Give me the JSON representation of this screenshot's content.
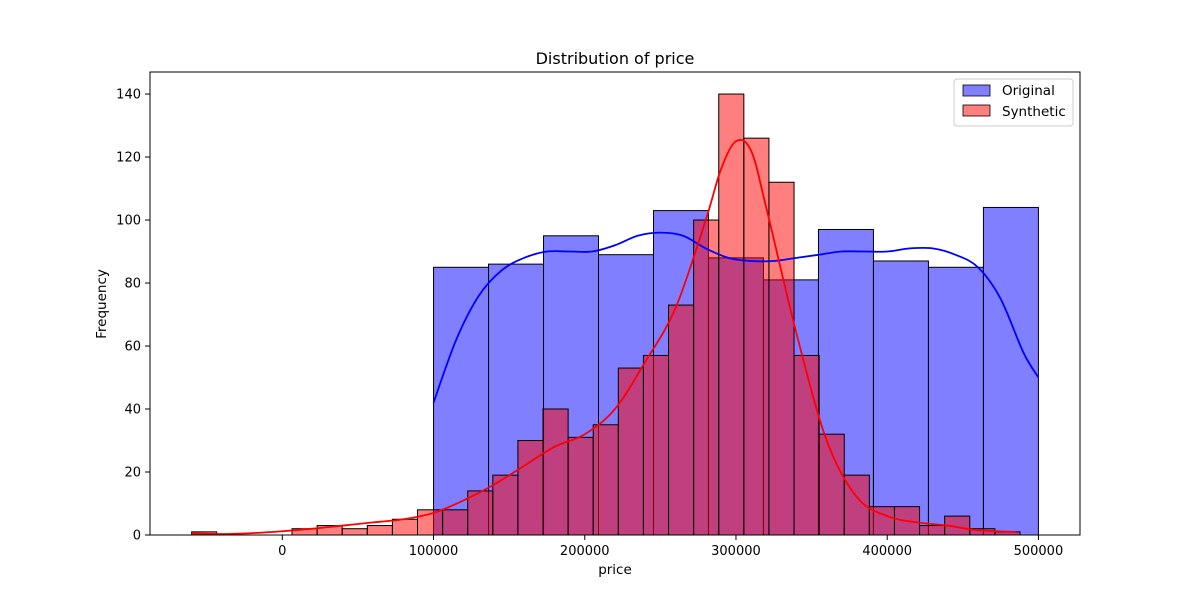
{
  "chart_data": {
    "type": "bar",
    "title": "Distribution of price",
    "xlabel": "price",
    "ylabel": "Frequency",
    "xlim": [
      -87500,
      527500
    ],
    "ylim": [
      0,
      147
    ],
    "x_ticks": [
      0,
      100000,
      200000,
      300000,
      400000,
      500000
    ],
    "y_ticks": [
      0,
      20,
      40,
      60,
      80,
      100,
      120,
      140
    ],
    "legend_placement": "top-right",
    "grid": false,
    "series": [
      {
        "name": "Original",
        "color": "#0000ff",
        "bin_edges": [
          100000,
          136364,
          172727,
          209091,
          245455,
          281818,
          318182,
          354545,
          390909,
          427273,
          463636,
          500000
        ],
        "counts": [
          85,
          86,
          95,
          89,
          103,
          88,
          81,
          97,
          87,
          85,
          104
        ],
        "kde_x": [
          100000,
          115000,
          130000,
          145000,
          160000,
          175000,
          190000,
          205000,
          220000,
          235000,
          250000,
          265000,
          280000,
          295000,
          310000,
          325000,
          340000,
          355000,
          370000,
          385000,
          400000,
          415000,
          430000,
          445000,
          460000,
          475000,
          490000,
          500000
        ],
        "kde_y": [
          42,
          62,
          76,
          84,
          88,
          90,
          90,
          90,
          92,
          95,
          96,
          95,
          91,
          88,
          87,
          87,
          88,
          89,
          90,
          90,
          90,
          91,
          91,
          89,
          85,
          75,
          58,
          50
        ]
      },
      {
        "name": "Synthetic",
        "color": "#ff0000",
        "bin_edges": [
          -60000,
          -43400,
          -26800,
          -10200,
          6400,
          23000,
          39600,
          56200,
          72800,
          89400,
          106000,
          122600,
          139200,
          155800,
          172400,
          189000,
          205600,
          222200,
          238800,
          255400,
          272000,
          288600,
          305200,
          321800,
          338400,
          355000,
          371600,
          388200,
          404800,
          421400,
          438000,
          454600,
          471200,
          487800
        ],
        "counts": [
          1,
          0,
          0,
          0,
          2,
          3,
          2,
          3,
          5,
          8,
          8,
          14,
          19,
          30,
          40,
          31,
          35,
          53,
          57,
          73,
          100,
          140,
          126,
          112,
          57,
          32,
          19,
          9,
          9,
          3,
          6,
          2,
          1
        ],
        "kde_x": [
          -60000,
          -40000,
          -20000,
          0,
          20000,
          40000,
          60000,
          80000,
          100000,
          120000,
          140000,
          160000,
          180000,
          200000,
          220000,
          240000,
          260000,
          280000,
          290000,
          300000,
          310000,
          320000,
          340000,
          360000,
          380000,
          400000,
          420000,
          440000,
          460000,
          485000
        ],
        "kde_y": [
          0.5,
          0.3,
          0.6,
          1.2,
          2,
          3,
          4,
          5,
          7,
          11,
          16,
          22,
          28,
          32,
          40,
          55,
          72,
          100,
          116,
          125,
          122,
          104,
          64,
          30,
          12,
          6,
          4,
          3,
          1.5,
          1
        ]
      }
    ]
  }
}
